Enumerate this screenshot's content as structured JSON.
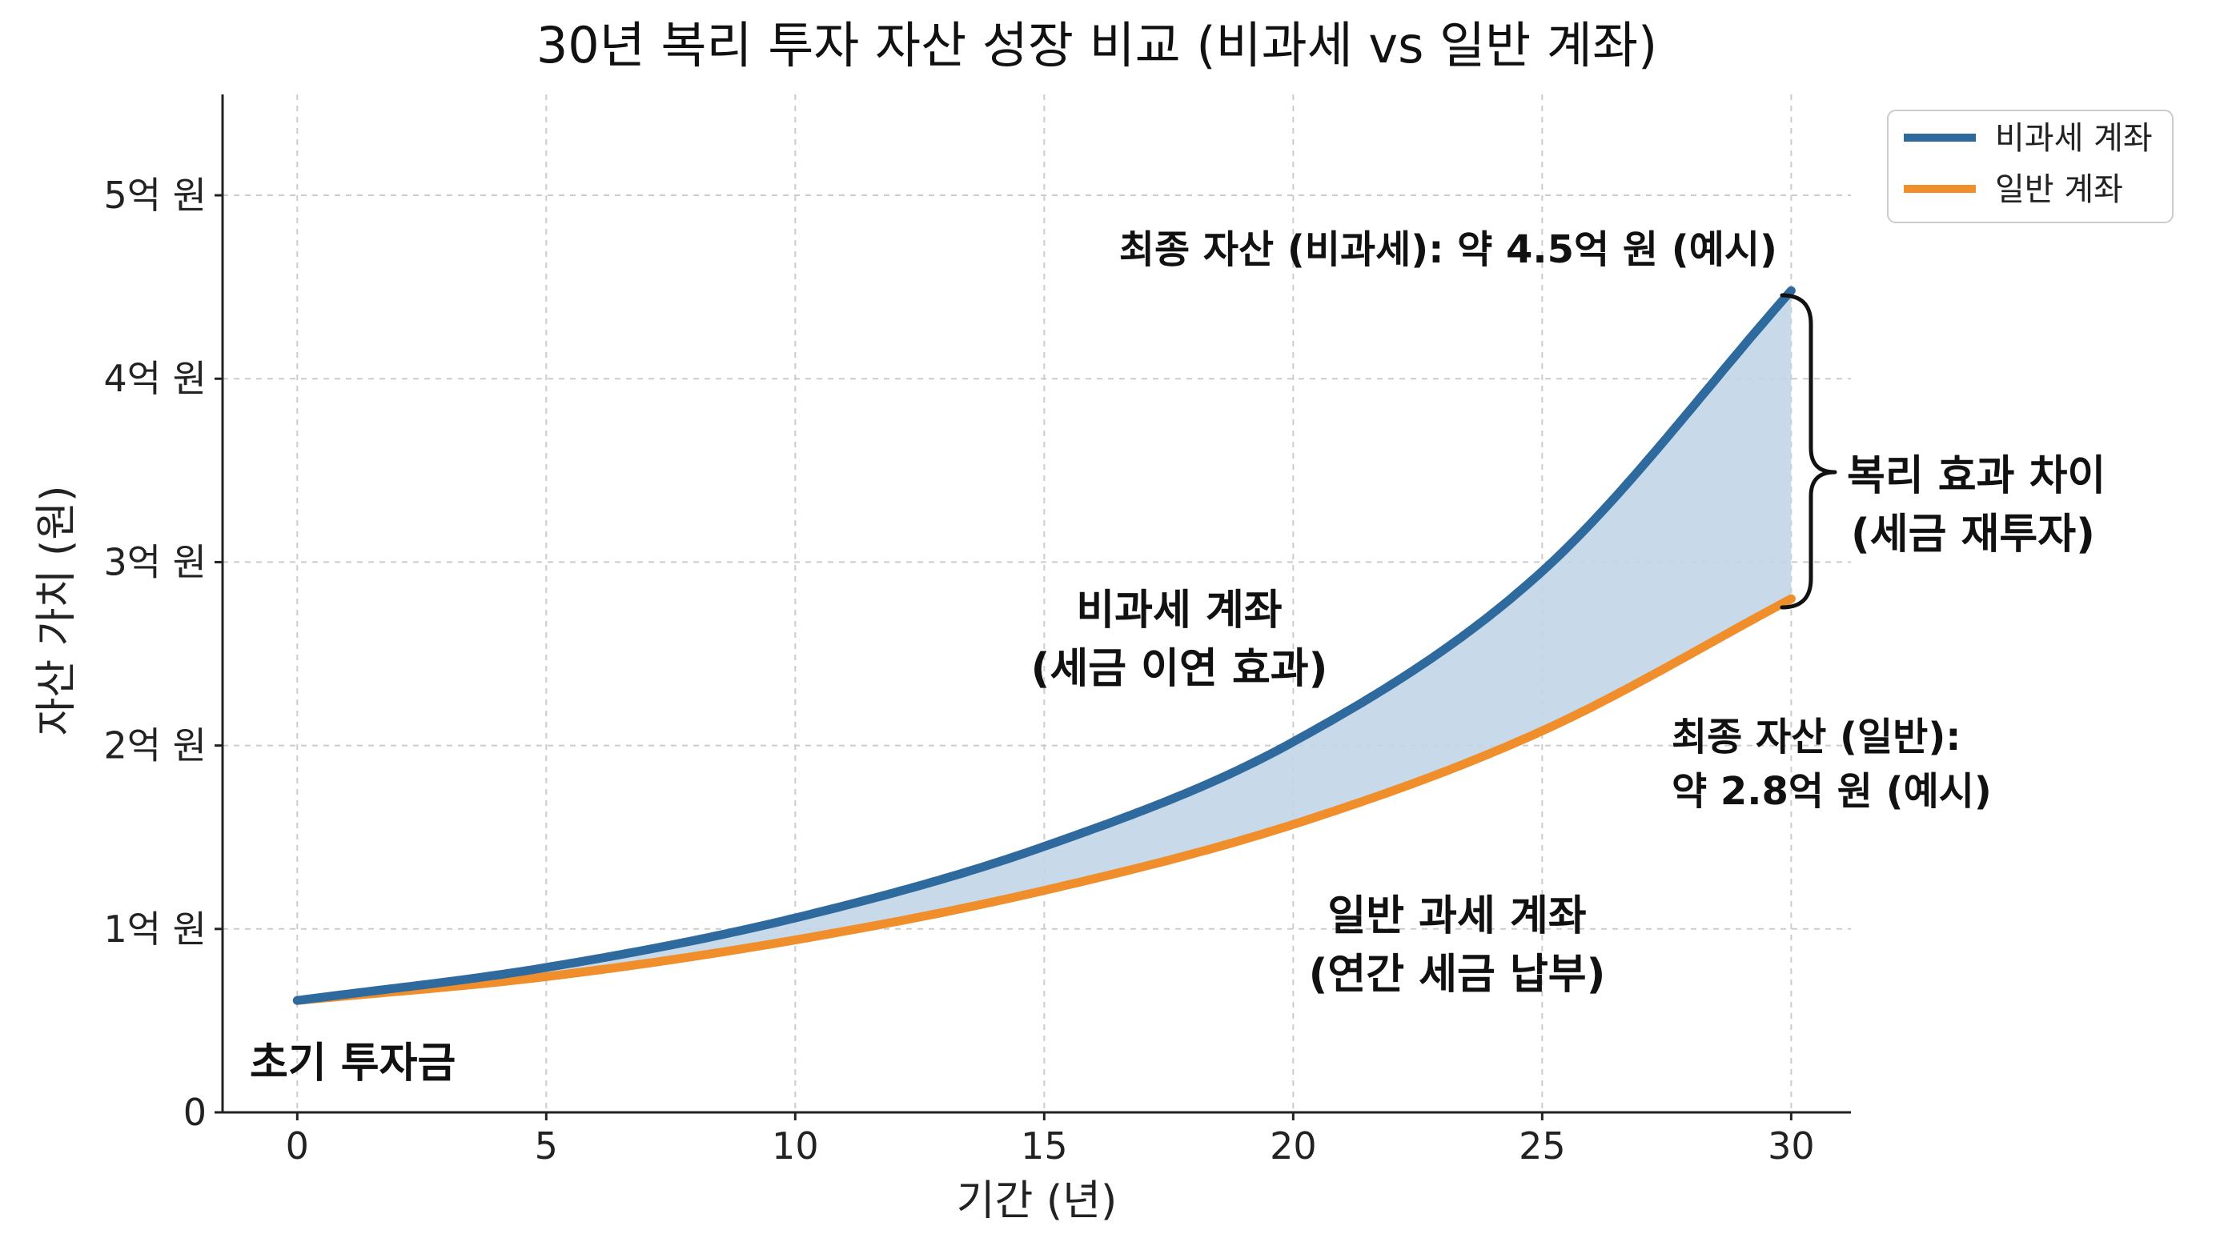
{
  "chart_data": {
    "type": "line",
    "title": "30년 복리 투자 자산 성장 비교 (비과세 vs 일반 계좌)",
    "xlabel": "기간 (년)",
    "ylabel": "자산 가치 (원)",
    "xlim": [
      -1.5,
      31.2
    ],
    "ylim": [
      0,
      5.55
    ],
    "x_ticks": [
      0,
      5,
      10,
      15,
      20,
      25,
      30
    ],
    "y_ticks": [
      {
        "value": 0,
        "label": "0"
      },
      {
        "value": 1,
        "label": "1억 원"
      },
      {
        "value": 2,
        "label": "2억 원"
      },
      {
        "value": 3,
        "label": "3억 원"
      },
      {
        "value": 4,
        "label": "4억 원"
      },
      {
        "value": 5,
        "label": "5억 원"
      }
    ],
    "grid": true,
    "legend_position": "top-right",
    "x": [
      0,
      5,
      10,
      15,
      20,
      25,
      30
    ],
    "series": [
      {
        "name": "비과세 계좌",
        "color": "#2f6a9e",
        "values": [
          0.61,
          0.79,
          1.06,
          1.45,
          2.02,
          2.95,
          4.48
        ]
      },
      {
        "name": "일반 계좌",
        "color": "#ef8e2b",
        "values": [
          0.61,
          0.74,
          0.94,
          1.21,
          1.57,
          2.08,
          2.8
        ]
      }
    ],
    "fill_between": {
      "color": "#c2d6e7"
    },
    "annotations": {
      "final_tax_free": "최종 자산 (비과세): 약 4.5억 원 (예시)",
      "gap_line1": "복리 효과 차이",
      "gap_line2": "(세금 재투자)",
      "tax_free_line1": "비과세 계좌",
      "tax_free_line2": "(세금 이연 효과)",
      "final_general_line1": "최종 자산 (일반):",
      "final_general_line2": "약 2.8억 원 (예시)",
      "general_line1": "일반 과세 계좌",
      "general_line2": "(연간 세금 납부)",
      "initial": "초기 투자금"
    }
  }
}
